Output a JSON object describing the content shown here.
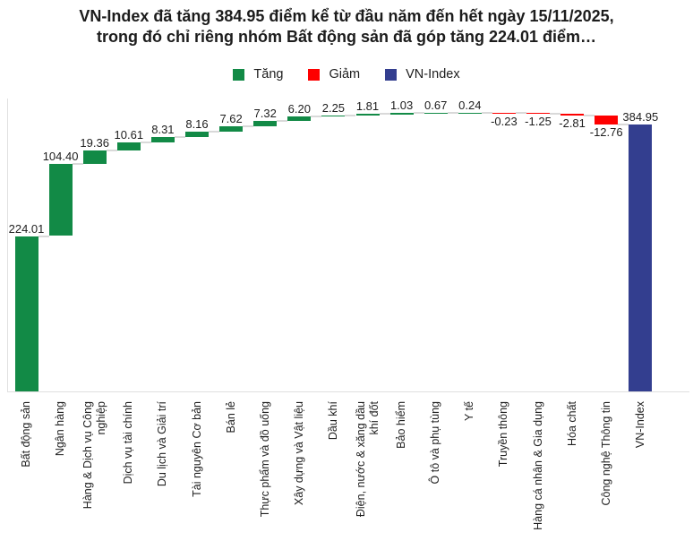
{
  "title": {
    "line1": "VN-Index đã tăng 384.95 điểm kể từ đầu năm đến hết ngày 15/11/2025,",
    "line2": "trong đó chỉ riêng nhóm Bất động sản đã góp tăng 224.01 điểm…"
  },
  "legend": [
    {
      "label": "Tăng",
      "color": "#128a46",
      "icon": "green-square-swatch"
    },
    {
      "label": "Giảm",
      "color": "#fe0000",
      "icon": "red-square-swatch"
    },
    {
      "label": "VN-Index",
      "color": "#333e8f",
      "icon": "navy-square-swatch"
    }
  ],
  "chart_data": {
    "type": "bar",
    "subtype": "waterfall",
    "title": "VN-Index đã tăng 384.95 điểm kể từ đầu năm đến hết ngày 15/11/2025, trong đó chỉ riêng nhóm Bất động sản đã góp tăng 224.01 điểm…",
    "legend_entries": [
      "Tăng",
      "Giảm",
      "VN-Index"
    ],
    "legend_position": "top",
    "grid": false,
    "ylim": [
      0,
      420
    ],
    "xlabel": "",
    "ylabel": "",
    "categories": [
      "Bất động sản",
      "Ngân hàng",
      "Hàng & Dịch vụ Công nghiệp",
      "Dịch vụ tài chính",
      "Du lịch và Giải trí",
      "Tài nguyên Cơ bản",
      "Bán lẻ",
      "Thực phẩm và đồ uống",
      "Xây dựng và Vật liệu",
      "Dầu khí",
      "Điện, nước & xăng dầu khí đốt",
      "Bảo hiểm",
      "Ô tô và phụ tùng",
      "Y tế",
      "Truyền thông",
      "Hàng cá nhân & Gia dụng",
      "Hóa chất",
      "Công nghệ Thông tin",
      "VN-Index"
    ],
    "category_lines": [
      [
        "Bất động sản"
      ],
      [
        "Ngân hàng"
      ],
      [
        "Hàng & Dịch vụ Công",
        "nghiệp"
      ],
      [
        "Dịch vụ tài chính"
      ],
      [
        "Du lịch và Giải trí"
      ],
      [
        "Tài nguyên Cơ bản"
      ],
      [
        "Bán lẻ"
      ],
      [
        "Thực phẩm và đồ uống"
      ],
      [
        "Xây dựng và Vật liệu"
      ],
      [
        "Dầu khí"
      ],
      [
        "Điện, nước & xăng dầu",
        "khí đốt"
      ],
      [
        "Bảo hiểm"
      ],
      [
        "Ô tô và phụ tùng"
      ],
      [
        "Y tế"
      ],
      [
        "Truyền thông"
      ],
      [
        "Hàng cá nhân & Gia dụng"
      ],
      [
        "Hóa chất"
      ],
      [
        "Công nghệ Thông tin"
      ],
      [
        "VN-Index"
      ]
    ],
    "values": [
      224.01,
      104.4,
      19.36,
      10.61,
      8.31,
      8.16,
      7.62,
      7.32,
      6.2,
      2.25,
      1.81,
      1.03,
      0.67,
      0.24,
      -0.23,
      -1.25,
      -2.81,
      -12.76,
      384.95
    ],
    "bar_roles": [
      "increase",
      "increase",
      "increase",
      "increase",
      "increase",
      "increase",
      "increase",
      "increase",
      "increase",
      "increase",
      "increase",
      "increase",
      "increase",
      "increase",
      "decrease",
      "decrease",
      "decrease",
      "decrease",
      "total"
    ],
    "colors": {
      "increase": "#128a46",
      "decrease": "#fe0000",
      "total": "#333e8f",
      "connector": "#d9d9d9",
      "axis": "#e0e0e0",
      "text": "#1d1d1d"
    }
  }
}
